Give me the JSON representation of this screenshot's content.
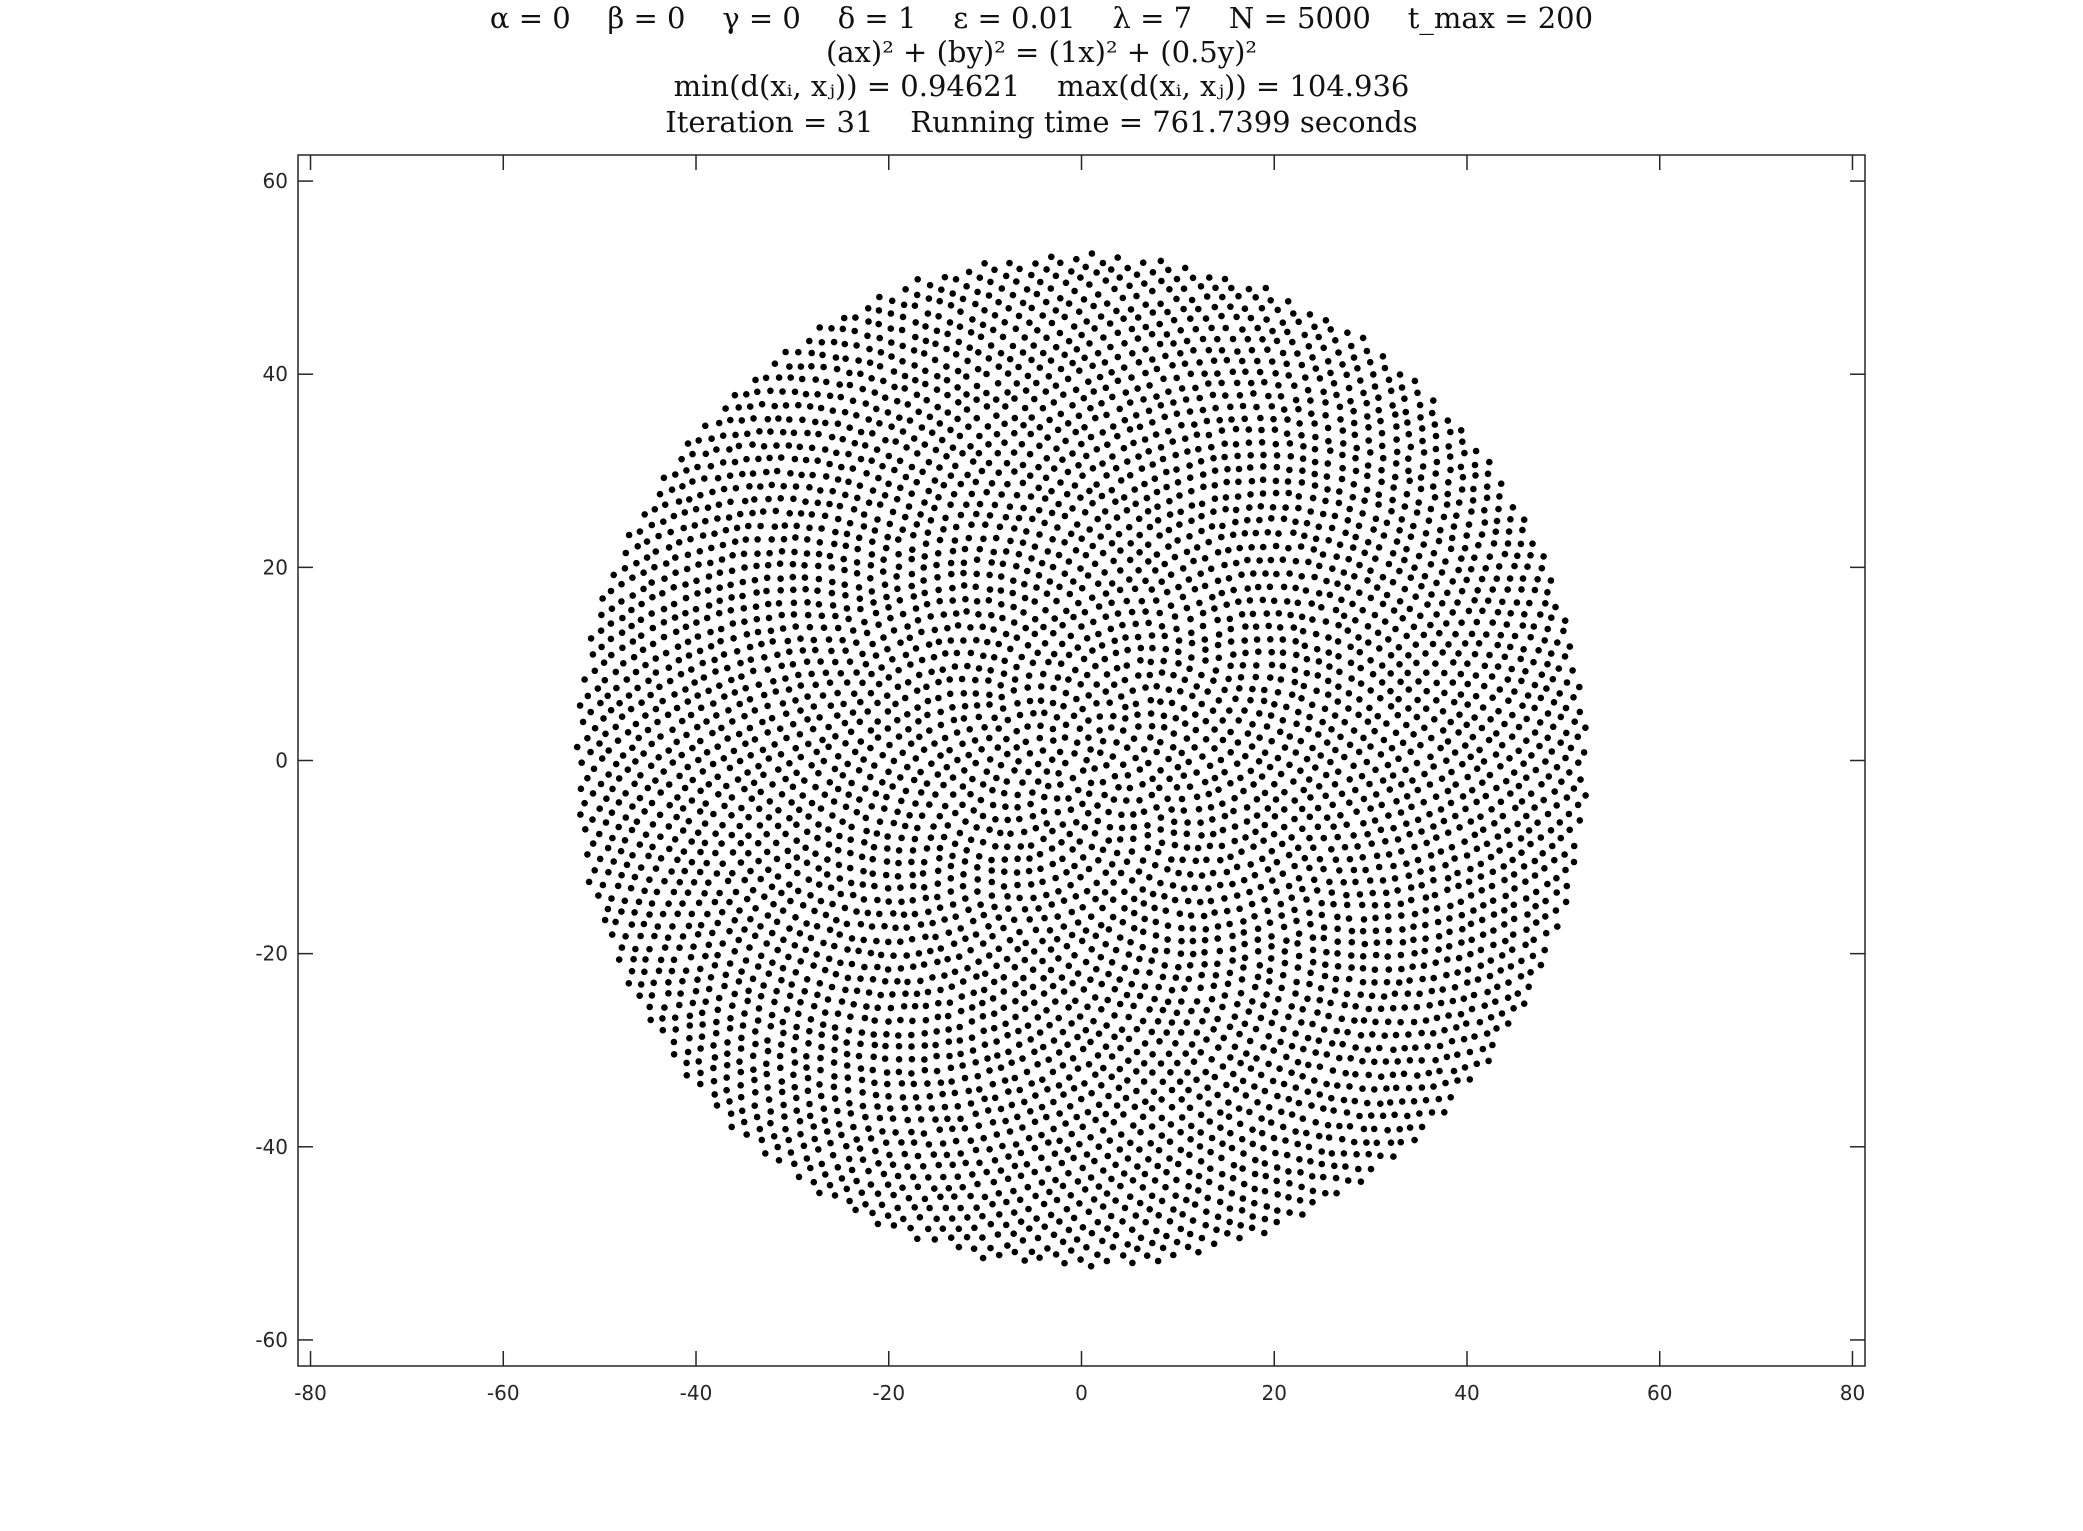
{
  "chart_data": {
    "type": "scatter",
    "title_lines": [
      "α = 0    β = 0    γ = 0    δ = 1    ε = 0.01    λ = 7    N = 5000    t_max = 200",
      "(ax)² + (by)² = (1x)² + (0.5y)²",
      "min(d(xᵢ, xⱼ)) = 0.94621    max(d(xᵢ, xⱼ)) = 104.936",
      "Iteration = 31    Running time = 761.7399 seconds"
    ],
    "xlabel": "",
    "ylabel": "",
    "xlim": [
      -81.3,
      81.3
    ],
    "ylim": [
      -62.7,
      62.7
    ],
    "x_ticks": [
      -80,
      -60,
      -40,
      -20,
      0,
      20,
      40,
      60,
      80
    ],
    "y_ticks": [
      -60,
      -40,
      -20,
      0,
      20,
      40,
      60
    ],
    "x_tick_labels": [
      "-80",
      "-60",
      "-40",
      "-20",
      "0",
      "20",
      "40",
      "60",
      "80"
    ],
    "y_tick_labels": [
      "-60",
      "-40",
      "-20",
      "0",
      "20",
      "40",
      "60"
    ],
    "grid": false,
    "point_cloud": {
      "shape": "disk",
      "center": [
        0,
        0
      ],
      "radius": 52.5,
      "point_count": 5000,
      "marker_color": "#000000"
    }
  },
  "colors": {
    "axes": "#262626",
    "points": "#000000",
    "background": "#ffffff"
  }
}
